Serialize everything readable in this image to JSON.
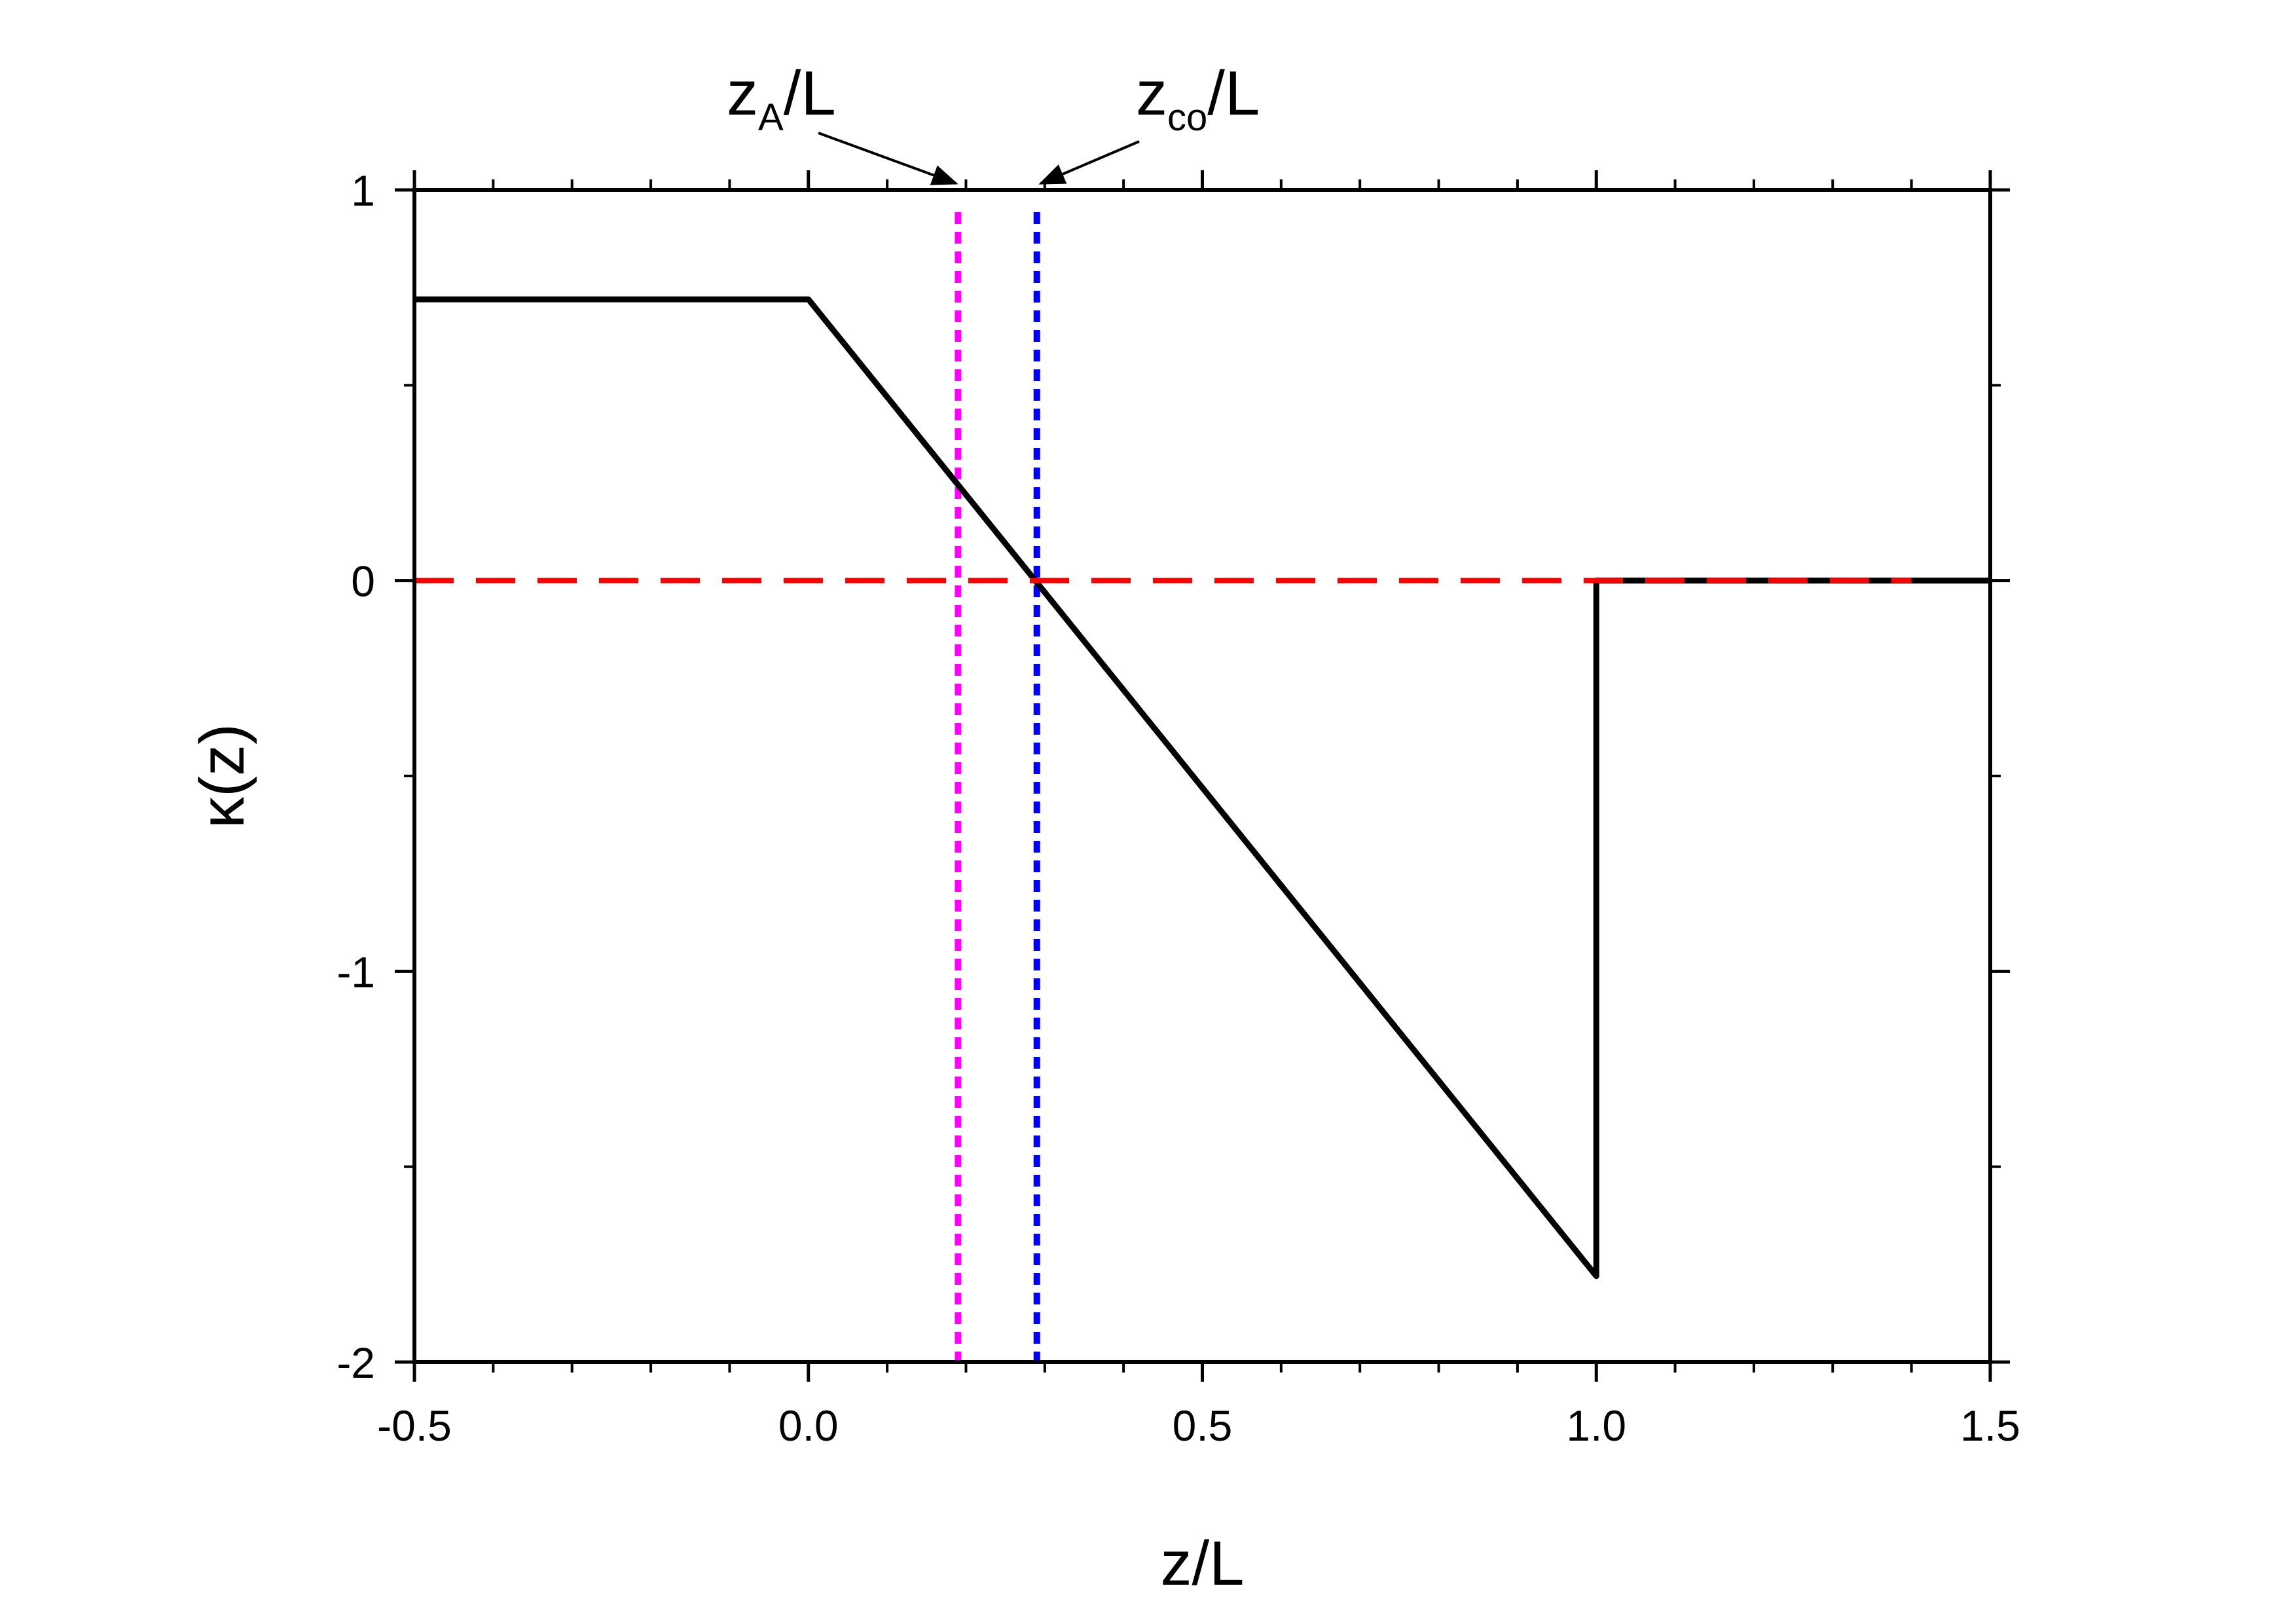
{
  "chart_data": {
    "type": "line",
    "xlabel": "z/L",
    "ylabel": "κ(z)",
    "xlim": [
      -0.5,
      1.5
    ],
    "ylim": [
      -2,
      1
    ],
    "x_ticks": [
      "-0.5",
      "0.0",
      "0.5",
      "1.0",
      "1.5"
    ],
    "y_ticks": [
      "1",
      "0",
      "-1",
      "-2"
    ],
    "x_tick_values": [
      -0.5,
      0.0,
      0.5,
      1.0,
      1.5
    ],
    "y_tick_values": [
      1,
      0,
      -1,
      -2
    ],
    "grid": false,
    "series": [
      {
        "color": "#000000",
        "style": "solid",
        "points": [
          [
            -0.5,
            0.72
          ],
          [
            0.0,
            0.72
          ],
          [
            1.0,
            -1.78
          ],
          [
            1.0,
            0.0
          ],
          [
            1.5,
            0.0
          ]
        ]
      },
      {
        "color": "#ff0000",
        "style": "dashed",
        "points": [
          [
            -0.5,
            0.0
          ],
          [
            1.4,
            0.0
          ]
        ]
      }
    ],
    "vlines": [
      {
        "x": 0.19,
        "color": "#ff00ff",
        "style": "dotted"
      },
      {
        "x": 0.29,
        "color": "#0000ff",
        "style": "dotted"
      }
    ],
    "annotations": [
      {
        "name": "zA",
        "main": "z",
        "sub": "A",
        "suffix": "/L",
        "target_x": 0.19
      },
      {
        "name": "zco",
        "main": "z",
        "sub": "co",
        "suffix": "/L",
        "target_x": 0.29
      }
    ]
  }
}
